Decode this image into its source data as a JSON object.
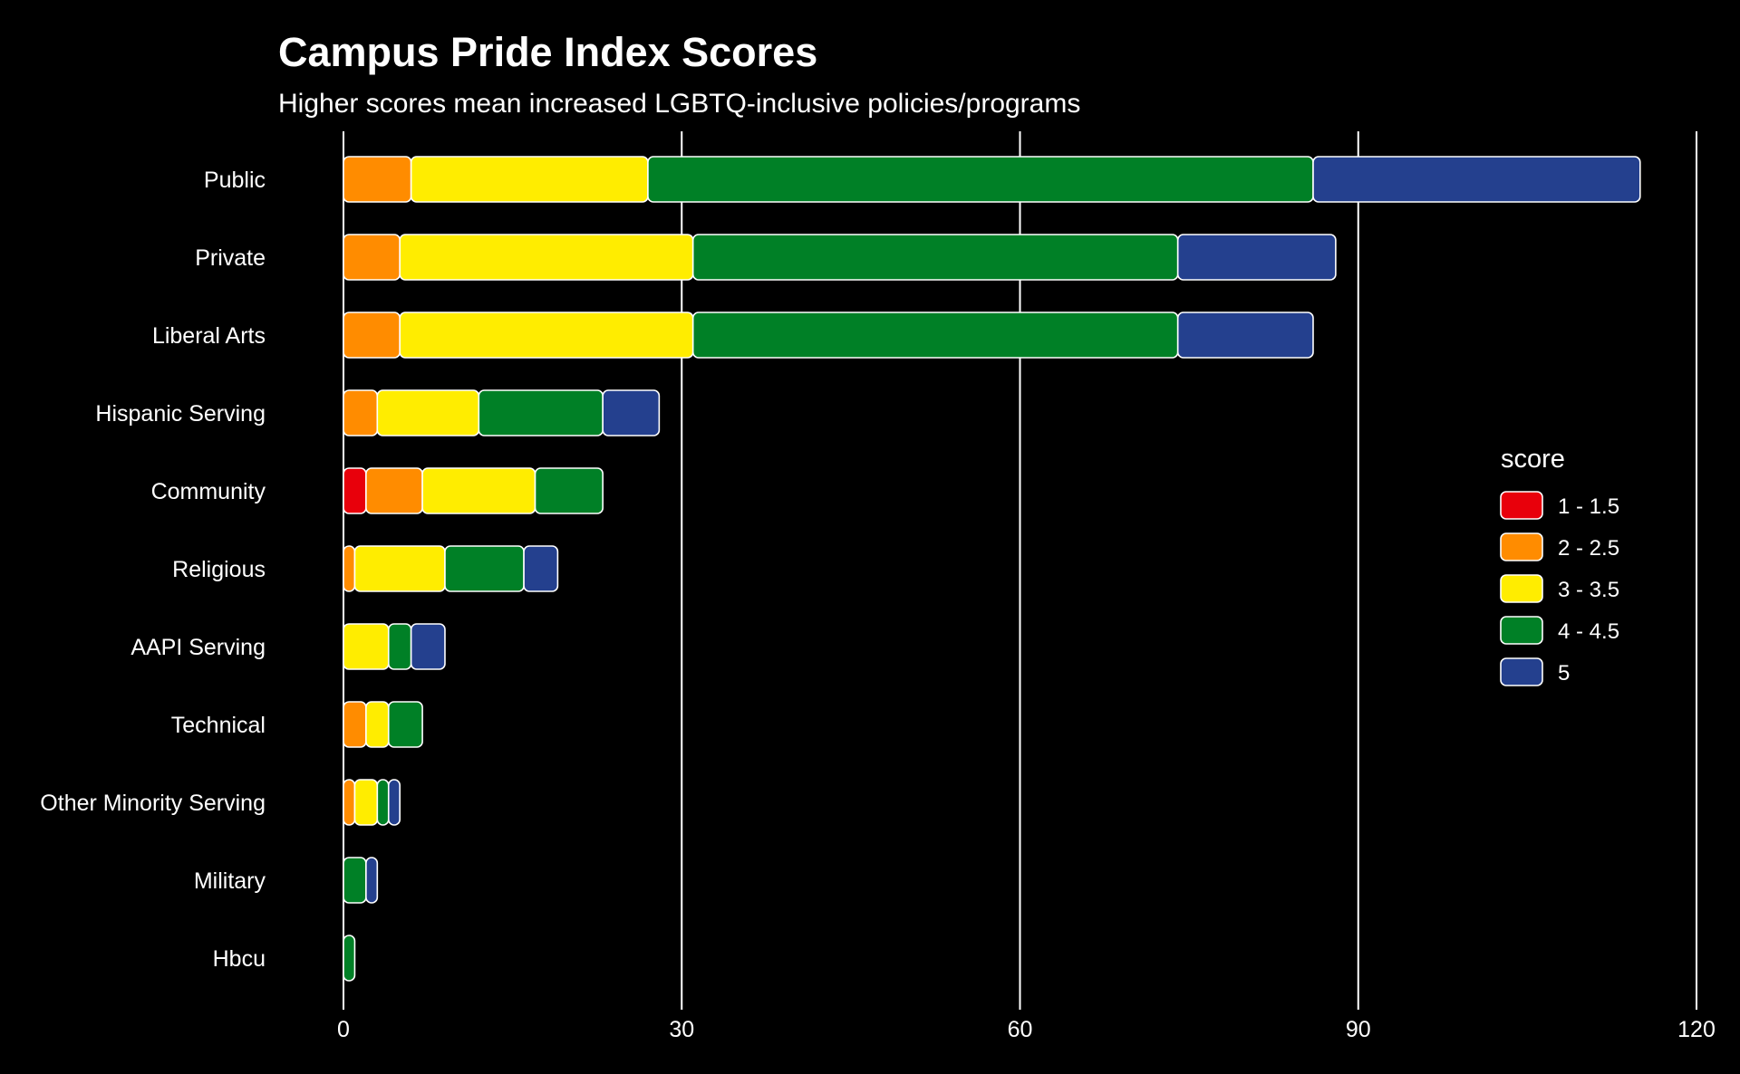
{
  "chart_data": {
    "type": "bar",
    "orientation": "horizontal",
    "stacked": true,
    "title": "Campus Pride Index Scores",
    "subtitle": "Higher scores mean increased LGBTQ-inclusive policies/programs",
    "xlim": [
      0,
      120
    ],
    "x_ticks": [
      0,
      30,
      60,
      90,
      120
    ],
    "grid": "vertical major lines",
    "legend": {
      "title": "score",
      "placement": "right"
    },
    "categories": [
      "Public",
      "Private",
      "Liberal Arts",
      "Hispanic Serving",
      "Community",
      "Religious",
      "AAPI Serving",
      "Technical",
      "Other Minority Serving",
      "Military",
      "Hbcu"
    ],
    "series": [
      {
        "name": "1 - 1.5",
        "color": "#e8000b",
        "values": [
          0,
          0,
          0,
          0,
          2,
          0,
          0,
          0,
          0,
          0,
          0
        ]
      },
      {
        "name": "2 - 2.5",
        "color": "#ff8c00",
        "values": [
          6,
          5,
          5,
          3,
          5,
          1,
          0,
          2,
          1,
          0,
          0
        ]
      },
      {
        "name": "3 - 3.5",
        "color": "#ffed00",
        "values": [
          21,
          26,
          26,
          9,
          10,
          8,
          4,
          2,
          2,
          0,
          0
        ]
      },
      {
        "name": "4 - 4.5",
        "color": "#008026",
        "values": [
          59,
          43,
          43,
          11,
          6,
          7,
          2,
          3,
          1,
          2,
          1
        ]
      },
      {
        "name": "5",
        "color": "#24408e",
        "values": [
          29,
          14,
          12,
          5,
          0,
          3,
          3,
          0,
          1,
          1,
          0
        ]
      }
    ]
  }
}
